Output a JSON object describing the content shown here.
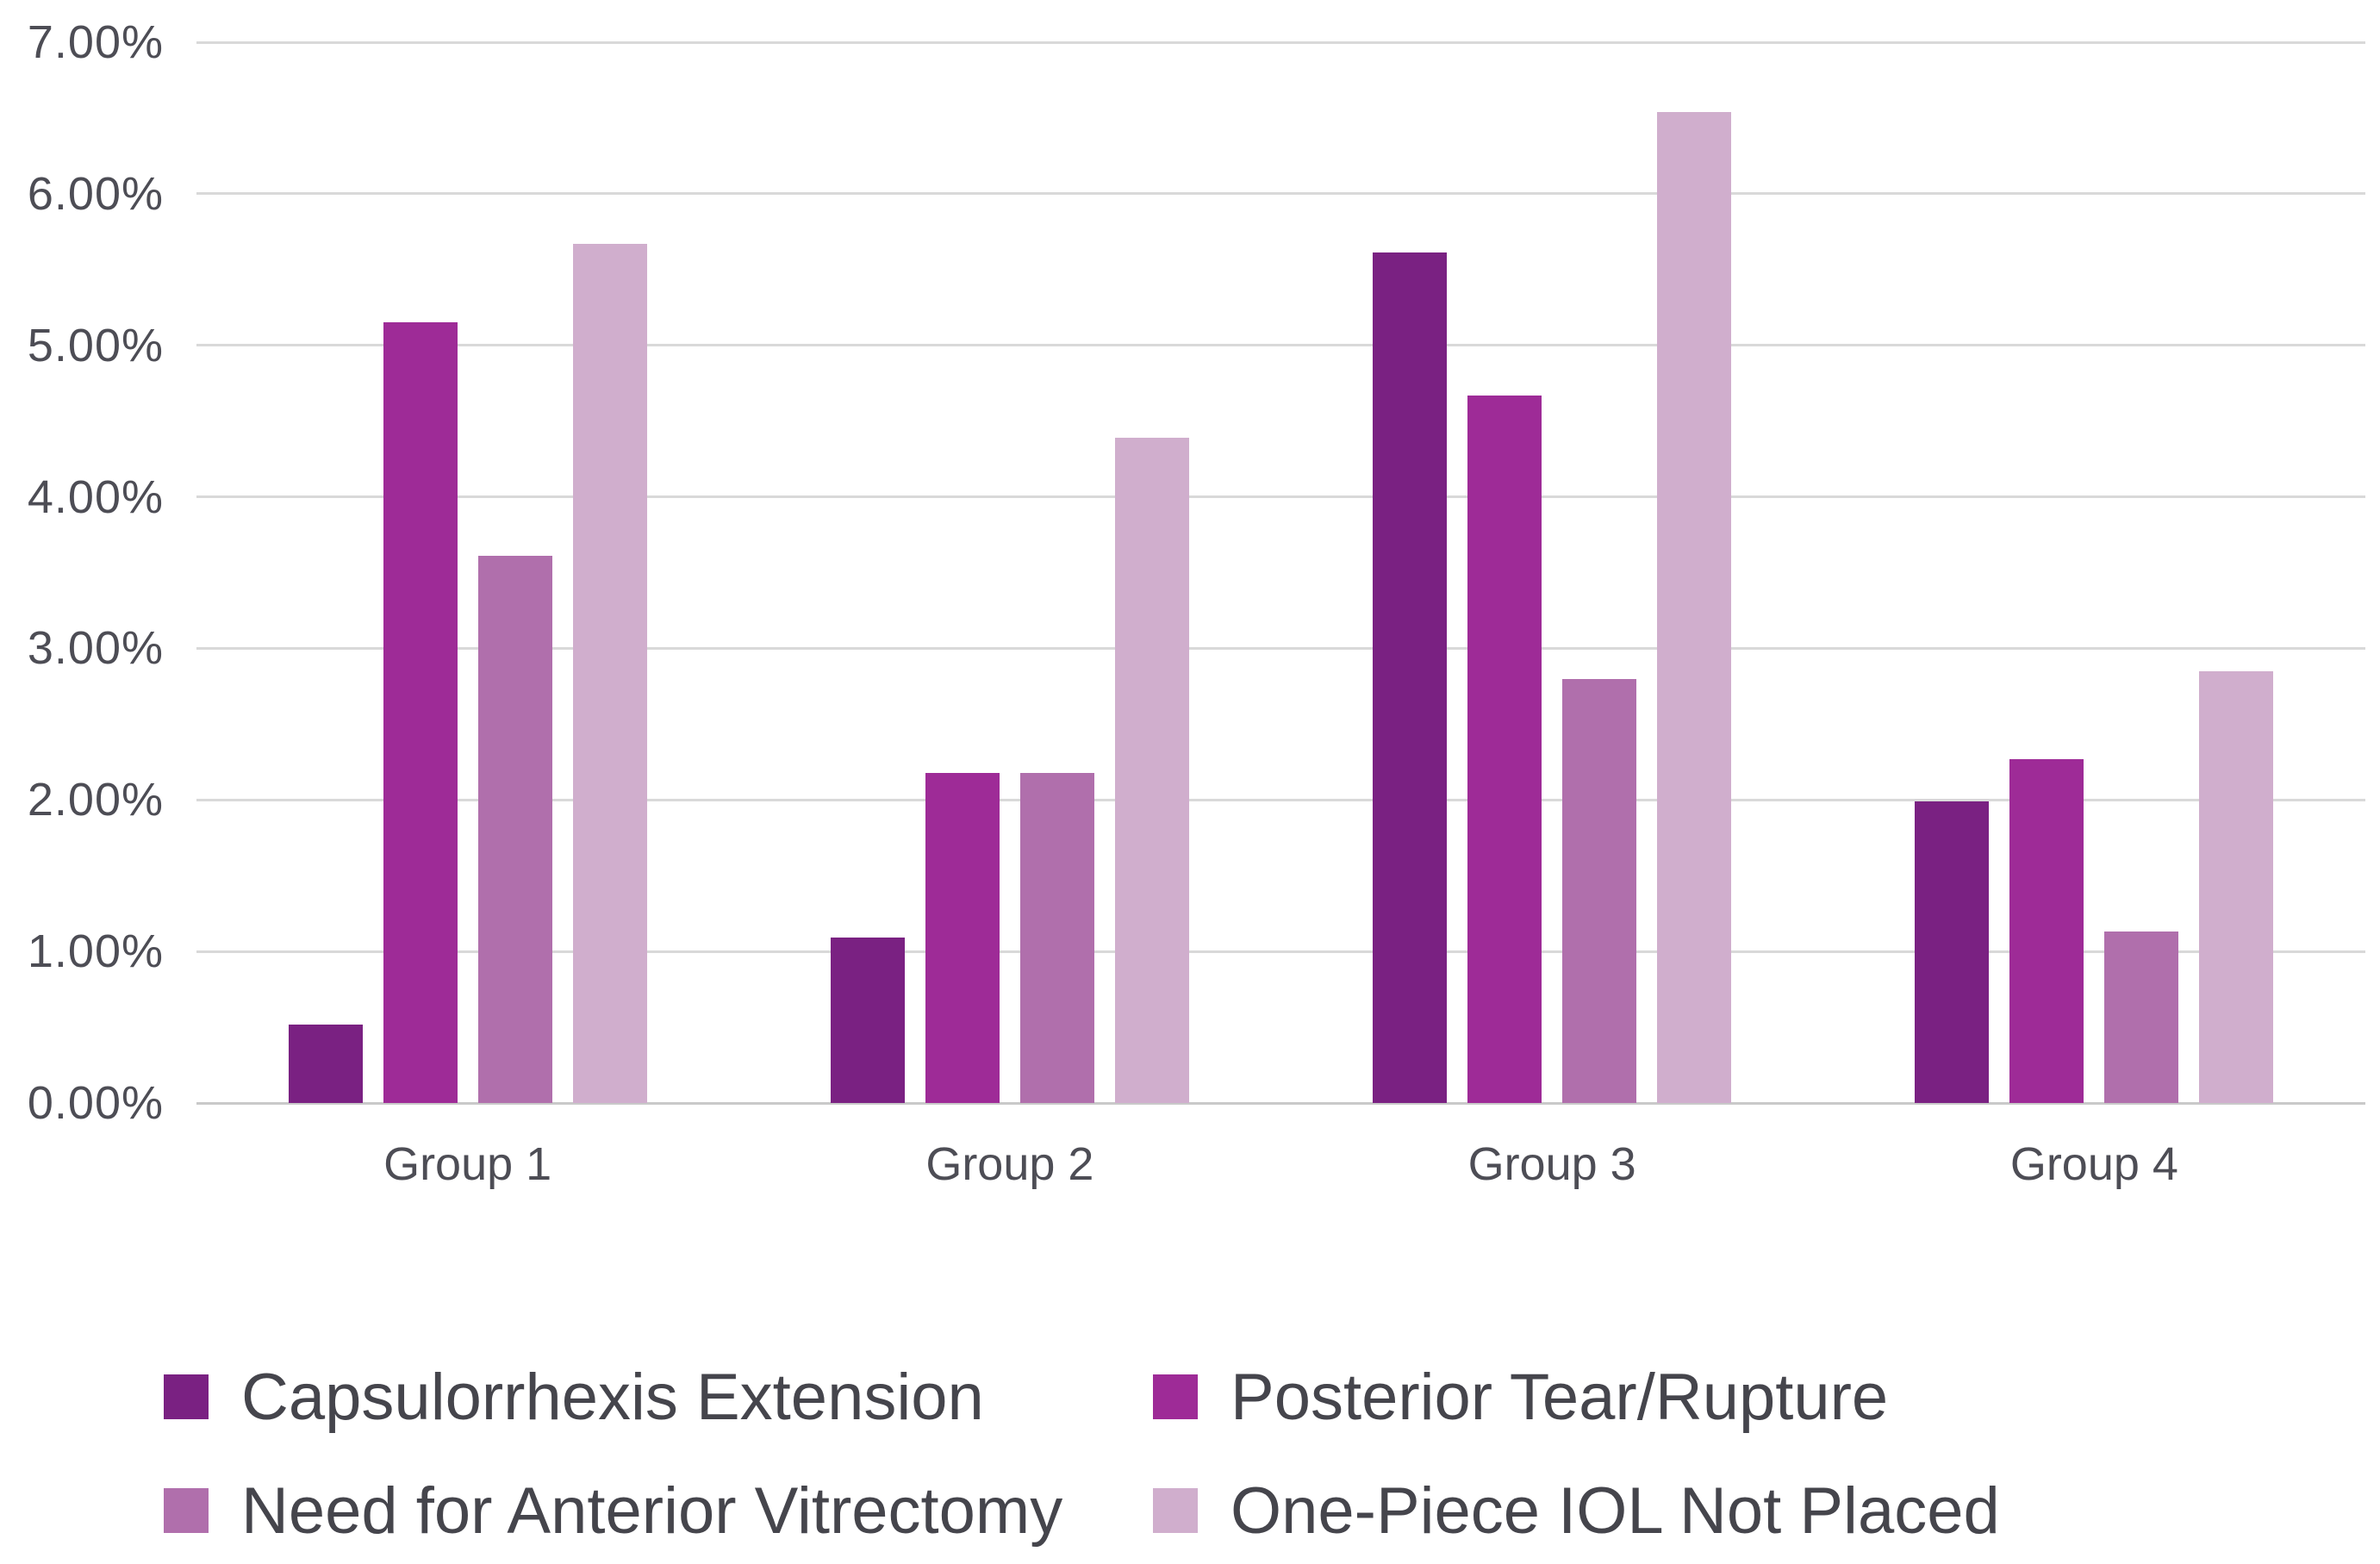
{
  "chart_data": {
    "type": "bar",
    "title": "",
    "categories": [
      "Group 1",
      "Group 2",
      "Group 3",
      "Group 4"
    ],
    "series": [
      {
        "name": "Capsulorrhexis Extension",
        "color": "#7A2182",
        "values": [
          0.52,
          1.09,
          5.61,
          1.99
        ]
      },
      {
        "name": "Posterior Tear/Rupture",
        "color": "#9E2B97",
        "values": [
          5.15,
          2.18,
          4.67,
          2.27
        ]
      },
      {
        "name": "Need for Anterior Vitrectomy",
        "color": "#B06FAC",
        "values": [
          3.61,
          2.18,
          2.8,
          1.13
        ]
      },
      {
        "name": "One-Piece IOL Not Placed",
        "color": "#D0AECD",
        "values": [
          5.67,
          4.39,
          6.54,
          2.85
        ]
      }
    ],
    "y_axis": {
      "min": 0,
      "max": 7,
      "step": 1,
      "tick_labels": [
        "0.00%",
        "1.00%",
        "2.00%",
        "3.00%",
        "4.00%",
        "5.00%",
        "6.00%",
        "7.00%"
      ],
      "format": "percent"
    },
    "xlabel": "",
    "ylabel": "",
    "grid": true,
    "gridline_color": "#D9D9D9",
    "legend_position": "bottom",
    "legend_rows": 2,
    "legend_columns": 2,
    "text_color": "#4D4D55"
  }
}
